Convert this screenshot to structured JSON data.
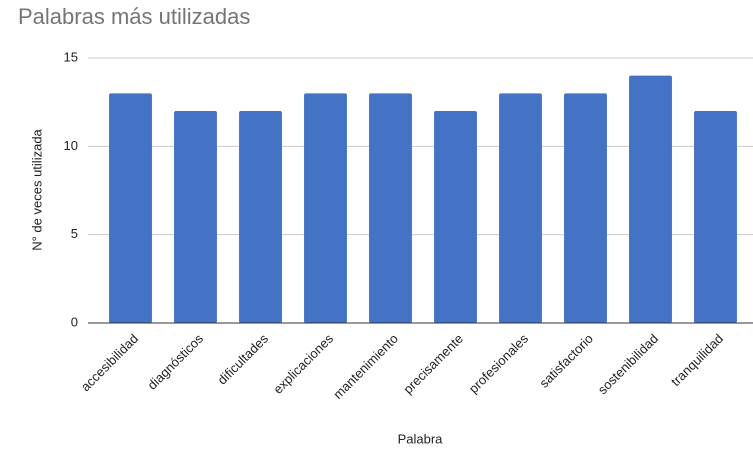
{
  "chart_data": {
    "type": "bar",
    "title": "Palabras más utilizadas",
    "x_label": "Palabra",
    "y_label": "N° de veces utilizada",
    "categories": [
      "accesibilidad",
      "diagnósticos",
      "dificultades",
      "explicaciones",
      "mantenimiento",
      "precisamente",
      "profesionales",
      "satisfactorio",
      "sostenibilidad",
      "tranquilidad"
    ],
    "values": [
      13,
      12,
      12,
      13,
      13,
      12,
      13,
      13,
      14,
      12
    ],
    "color": "#4472c4",
    "ylim": [
      0,
      15
    ],
    "yticks": [
      0,
      5,
      10,
      15
    ],
    "grid": true
  }
}
